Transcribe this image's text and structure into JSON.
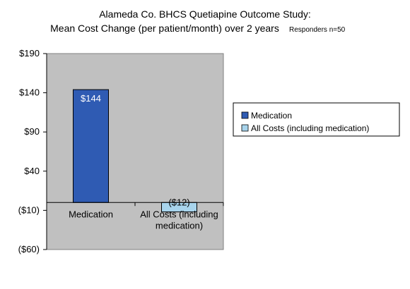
{
  "chart_data": {
    "type": "bar",
    "title_line1": "Alameda Co. BHCS Quetiapine Outcome Study:",
    "title_line2": "Mean Cost Change (per patient/month) over 2 years",
    "note": "Responders n=50",
    "categories": [
      "Medication",
      "All Costs (including medication)"
    ],
    "values": [
      144,
      -12
    ],
    "data_labels": [
      "$144",
      "($12)"
    ],
    "bar_colors": [
      "#2f5bb3",
      "#a8d4ec"
    ],
    "label_colors": [
      "#ffffff",
      "#000000"
    ],
    "legend": [
      {
        "name": "Medication",
        "color": "#2f5bb3"
      },
      {
        "name": "All Costs (including medication)",
        "color": "#a8d4ec"
      }
    ],
    "legend_position": "right",
    "yticks": [
      190,
      140,
      90,
      40,
      -10,
      -60
    ],
    "ytick_labels": [
      "$190",
      "$140",
      "$90",
      "$40",
      "($10)",
      "($60)"
    ],
    "ylim": [
      -60,
      190
    ],
    "plot_background": "#c0c0c0",
    "gridlines": false
  }
}
